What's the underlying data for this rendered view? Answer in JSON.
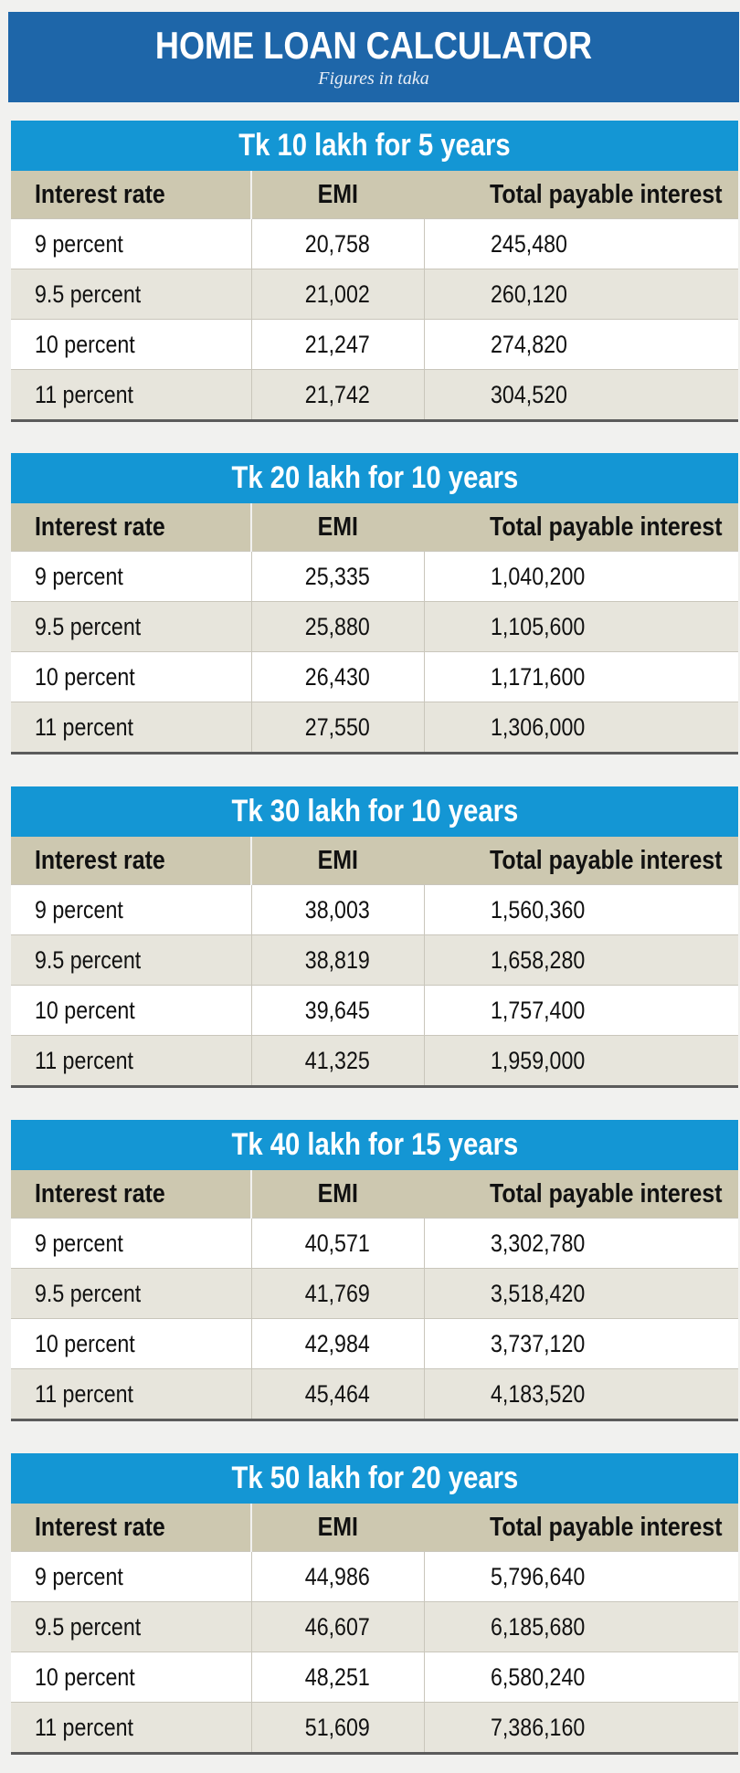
{
  "header": {
    "title": "HOME LOAN CALCULATOR",
    "subtitle": "Figures in taka"
  },
  "columns": [
    "Interest rate",
    "EMI",
    "Total payable interest"
  ],
  "sections": [
    {
      "title": "Tk 10 lakh for 5 years",
      "rows": [
        {
          "rate": "9 percent",
          "emi": "20,758",
          "interest": "245,480"
        },
        {
          "rate": "9.5 percent",
          "emi": "21,002",
          "interest": "260,120"
        },
        {
          "rate": "10 percent",
          "emi": "21,247",
          "interest": "274,820"
        },
        {
          "rate": "11 percent",
          "emi": "21,742",
          "interest": "304,520"
        }
      ]
    },
    {
      "title": "Tk 20 lakh for 10 years",
      "rows": [
        {
          "rate": "9 percent",
          "emi": "25,335",
          "interest": "1,040,200"
        },
        {
          "rate": "9.5 percent",
          "emi": "25,880",
          "interest": "1,105,600"
        },
        {
          "rate": "10 percent",
          "emi": "26,430",
          "interest": "1,171,600"
        },
        {
          "rate": "11 percent",
          "emi": "27,550",
          "interest": "1,306,000"
        }
      ]
    },
    {
      "title": "Tk 30 lakh for 10 years",
      "rows": [
        {
          "rate": "9 percent",
          "emi": "38,003",
          "interest": "1,560,360"
        },
        {
          "rate": "9.5 percent",
          "emi": "38,819",
          "interest": "1,658,280"
        },
        {
          "rate": "10 percent",
          "emi": "39,645",
          "interest": "1,757,400"
        },
        {
          "rate": "11 percent",
          "emi": "41,325",
          "interest": "1,959,000"
        }
      ]
    },
    {
      "title": "Tk 40 lakh for 15 years",
      "rows": [
        {
          "rate": "9 percent",
          "emi": "40,571",
          "interest": "3,302,780"
        },
        {
          "rate": "9.5 percent",
          "emi": "41,769",
          "interest": "3,518,420"
        },
        {
          "rate": "10 percent",
          "emi": "42,984",
          "interest": "3,737,120"
        },
        {
          "rate": "11 percent",
          "emi": "45,464",
          "interest": "4,183,520"
        }
      ]
    },
    {
      "title": "Tk 50 lakh for 20 years",
      "rows": [
        {
          "rate": "9 percent",
          "emi": "44,986",
          "interest": "5,796,640"
        },
        {
          "rate": "9.5 percent",
          "emi": "46,607",
          "interest": "6,185,680"
        },
        {
          "rate": "10 percent",
          "emi": "48,251",
          "interest": "6,580,240"
        },
        {
          "rate": "11 percent",
          "emi": "51,609",
          "interest": "7,386,160"
        }
      ]
    }
  ]
}
